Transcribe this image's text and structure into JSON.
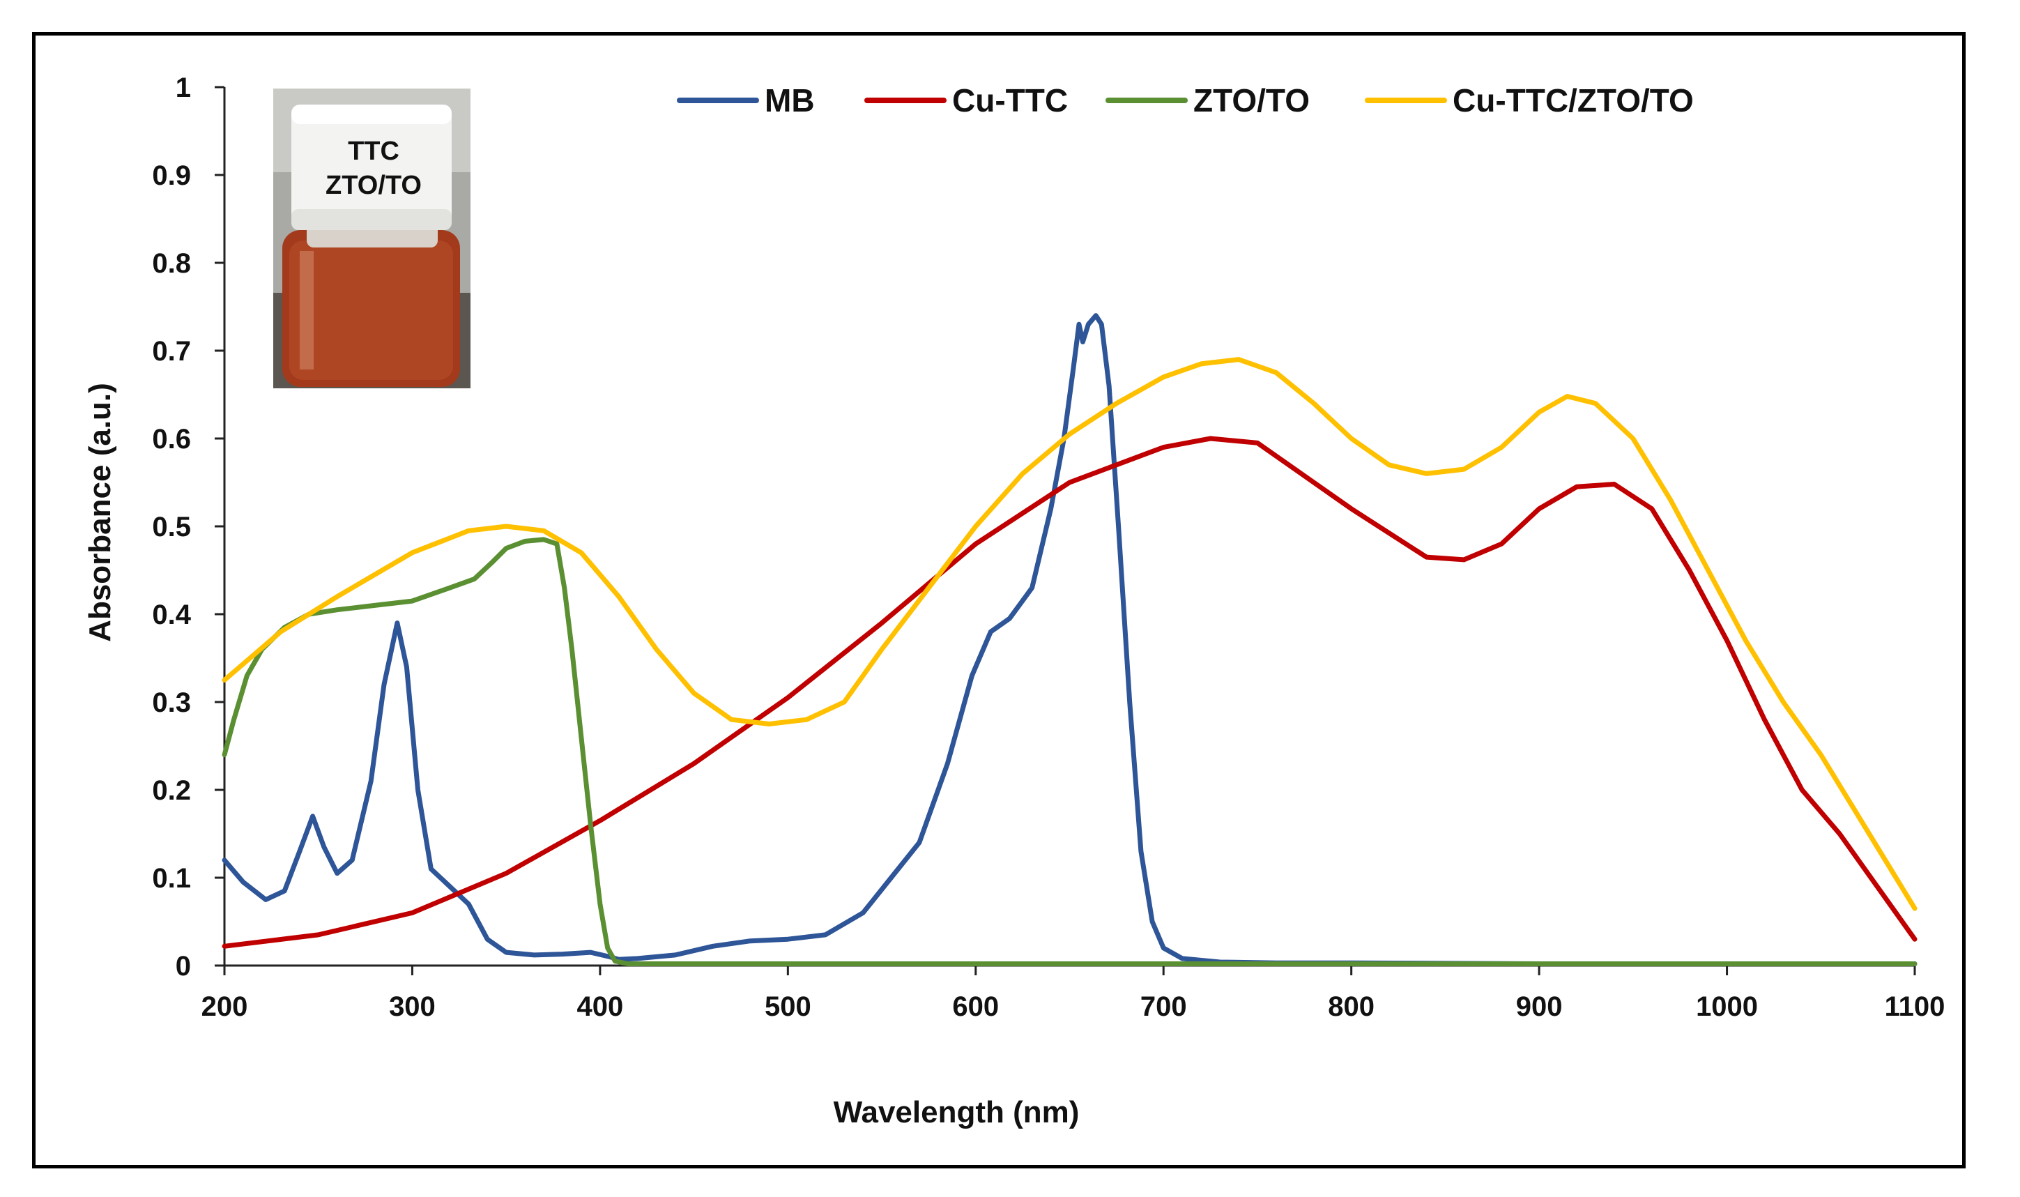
{
  "chart_data": {
    "type": "line",
    "title": "",
    "xlabel": "Wavelength (nm)",
    "ylabel": "Absorbance (a.u.)",
    "xlim": [
      200,
      1100
    ],
    "ylim": [
      0,
      1
    ],
    "xticks": [
      200,
      300,
      400,
      500,
      600,
      700,
      800,
      900,
      1000,
      1100
    ],
    "yticks": [
      0,
      0.1,
      0.2,
      0.3,
      0.4,
      0.5,
      0.6,
      0.7,
      0.8,
      0.9,
      1
    ],
    "ytick_labels": [
      "0",
      "0.1",
      "0.2",
      "0.3",
      "0.4",
      "0.5",
      "0.6",
      "0.7",
      "0.8",
      "0.9",
      "1"
    ],
    "grid": false,
    "legend_position": "top",
    "series": [
      {
        "name": "MB",
        "color": "#2E5597",
        "x": [
          200,
          210,
          222,
          232,
          240,
          247,
          253,
          260,
          268,
          278,
          285,
          292,
          297,
          303,
          310,
          320,
          330,
          340,
          350,
          365,
          380,
          395,
          405,
          410,
          420,
          440,
          460,
          480,
          500,
          520,
          540,
          555,
          570,
          585,
          598,
          608,
          618,
          630,
          640,
          647,
          652,
          655,
          657,
          660,
          664,
          667,
          671,
          676,
          682,
          688,
          694,
          700,
          710,
          730,
          760,
          800,
          900,
          1000,
          1100
        ],
        "y": [
          0.12,
          0.095,
          0.075,
          0.085,
          0.13,
          0.17,
          0.135,
          0.105,
          0.12,
          0.21,
          0.32,
          0.39,
          0.34,
          0.2,
          0.11,
          0.09,
          0.07,
          0.03,
          0.015,
          0.012,
          0.013,
          0.015,
          0.01,
          0.007,
          0.008,
          0.012,
          0.022,
          0.028,
          0.03,
          0.035,
          0.06,
          0.1,
          0.14,
          0.23,
          0.33,
          0.38,
          0.395,
          0.43,
          0.52,
          0.6,
          0.68,
          0.73,
          0.71,
          0.73,
          0.74,
          0.73,
          0.66,
          0.5,
          0.3,
          0.13,
          0.05,
          0.02,
          0.008,
          0.004,
          0.003,
          0.003,
          0.002,
          0.002,
          0.002
        ]
      },
      {
        "name": "Cu-TTC",
        "color": "#C00000",
        "x": [
          200,
          250,
          300,
          350,
          400,
          450,
          500,
          550,
          600,
          650,
          700,
          725,
          750,
          800,
          840,
          860,
          880,
          900,
          920,
          940,
          960,
          980,
          1000,
          1020,
          1040,
          1060,
          1080,
          1100
        ],
        "y": [
          0.022,
          0.035,
          0.06,
          0.105,
          0.165,
          0.23,
          0.305,
          0.39,
          0.48,
          0.55,
          0.59,
          0.6,
          0.595,
          0.52,
          0.465,
          0.462,
          0.48,
          0.52,
          0.545,
          0.548,
          0.52,
          0.45,
          0.37,
          0.28,
          0.2,
          0.15,
          0.09,
          0.03
        ]
      },
      {
        "name": "ZTO/TO",
        "color": "#5A8F32",
        "x": [
          200,
          205,
          212,
          220,
          232,
          245,
          260,
          280,
          300,
          320,
          333,
          343,
          350,
          360,
          370,
          377,
          381,
          385,
          390,
          395,
          400,
          404,
          408,
          415,
          450,
          600,
          800,
          1000,
          1100
        ],
        "y": [
          0.24,
          0.28,
          0.33,
          0.36,
          0.385,
          0.4,
          0.405,
          0.41,
          0.415,
          0.43,
          0.44,
          0.46,
          0.475,
          0.483,
          0.485,
          0.48,
          0.43,
          0.36,
          0.26,
          0.16,
          0.07,
          0.02,
          0.005,
          0.002,
          0.002,
          0.002,
          0.002,
          0.002,
          0.002
        ]
      },
      {
        "name": "Cu-TTC/ZTO/TO",
        "color": "#FFC000",
        "x": [
          200,
          230,
          260,
          300,
          330,
          350,
          370,
          390,
          410,
          430,
          450,
          470,
          490,
          510,
          530,
          550,
          575,
          600,
          625,
          650,
          675,
          700,
          720,
          740,
          760,
          780,
          800,
          820,
          840,
          860,
          880,
          900,
          915,
          930,
          950,
          970,
          990,
          1010,
          1030,
          1050,
          1070,
          1090,
          1100
        ],
        "y": [
          0.325,
          0.38,
          0.42,
          0.47,
          0.495,
          0.5,
          0.495,
          0.47,
          0.42,
          0.36,
          0.31,
          0.28,
          0.275,
          0.28,
          0.3,
          0.36,
          0.43,
          0.5,
          0.56,
          0.605,
          0.64,
          0.67,
          0.685,
          0.69,
          0.675,
          0.64,
          0.6,
          0.57,
          0.56,
          0.565,
          0.59,
          0.63,
          0.648,
          0.64,
          0.6,
          0.53,
          0.45,
          0.37,
          0.3,
          0.24,
          0.17,
          0.1,
          0.065
        ]
      }
    ]
  },
  "inset": {
    "label_line1": "TTC",
    "label_line2": "ZTO/TO"
  }
}
